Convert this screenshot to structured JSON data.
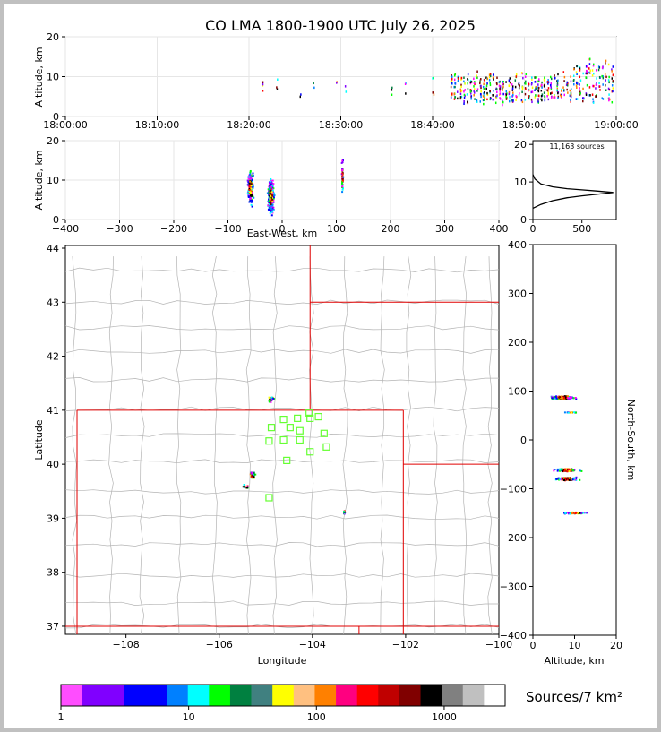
{
  "title": "CO LMA 1800-1900 UTC July 26, 2025",
  "colorbar_label": "Sources/7 km²",
  "source_count": "11,163 sources",
  "chart_data": [
    {
      "type": "scatter",
      "name": "time-height",
      "ylabel": "Altitude, km",
      "ylim": [
        0,
        20
      ],
      "yticks": [
        "0",
        "10",
        "20"
      ],
      "xticks": [
        "18:00:00",
        "18:10:00",
        "18:20:00",
        "18:30:00",
        "18:40:00",
        "18:50:00",
        "19:00:00"
      ],
      "xlim_minutes": [
        0,
        60
      ]
    },
    {
      "type": "scatter",
      "name": "east-west-altitude",
      "xlabel": "East-West, km",
      "ylabel": "Altitude, km",
      "xlim": [
        -400,
        400
      ],
      "ylim": [
        0,
        20
      ],
      "xticks": [
        "−400",
        "−300",
        "−200",
        "−100",
        "0",
        "100",
        "200",
        "300",
        "400"
      ],
      "yticks": [
        "0",
        "10",
        "20"
      ]
    },
    {
      "type": "line",
      "name": "altitude-histogram",
      "xlim": [
        0,
        850
      ],
      "ylim": [
        0,
        21
      ],
      "xticks": [
        "0",
        "500"
      ],
      "yticks": [
        "0",
        "10",
        "20"
      ],
      "profile": [
        [
          0,
          3
        ],
        [
          80,
          4
        ],
        [
          200,
          5
        ],
        [
          350,
          5.8
        ],
        [
          500,
          6.3
        ],
        [
          650,
          6.7
        ],
        [
          820,
          7.2
        ],
        [
          650,
          7.6
        ],
        [
          500,
          7.9
        ],
        [
          350,
          8.2
        ],
        [
          200,
          8.7
        ],
        [
          80,
          9.5
        ],
        [
          20,
          10.8
        ],
        [
          0,
          12
        ]
      ]
    },
    {
      "type": "scatter",
      "name": "plan-view",
      "xlabel": "Longitude",
      "ylabel": "Latitude",
      "xlim": [
        -109.3,
        -100
      ],
      "ylim": [
        36.85,
        44.05
      ],
      "xticks": [
        "−108",
        "−106",
        "−104",
        "−102",
        "−100"
      ],
      "yticks": [
        "37",
        "38",
        "39",
        "40",
        "41",
        "42",
        "43",
        "44"
      ],
      "stations": [
        [
          -104.62,
          40.83
        ],
        [
          -104.32,
          40.85
        ],
        [
          -104.05,
          40.85
        ],
        [
          -103.87,
          40.88
        ],
        [
          -104.07,
          40.95
        ],
        [
          -104.88,
          40.68
        ],
        [
          -104.48,
          40.68
        ],
        [
          -104.27,
          40.62
        ],
        [
          -103.75,
          40.57
        ],
        [
          -104.93,
          40.43
        ],
        [
          -104.62,
          40.45
        ],
        [
          -104.27,
          40.45
        ],
        [
          -103.7,
          40.32
        ],
        [
          -104.05,
          40.23
        ],
        [
          -104.55,
          40.07
        ],
        [
          -104.93,
          39.38
        ]
      ]
    },
    {
      "type": "scatter",
      "name": "north-south-altitude",
      "xlabel": "Altitude, km",
      "ylabel": "North-South, km",
      "xlim": [
        0,
        20
      ],
      "ylim": [
        -400,
        400
      ],
      "xticks": [
        "0",
        "10",
        "20"
      ],
      "yticks": [
        "400",
        "300",
        "200",
        "100",
        "0",
        "−100",
        "−200",
        "−300",
        "−400"
      ]
    }
  ],
  "colorbar": {
    "ticks": [
      "1",
      "10",
      "100",
      "1000"
    ],
    "colors": [
      "#ff4dff",
      "#8000ff",
      "#8000ff",
      "#0000ff",
      "#0000ff",
      "#0080ff",
      "#00ffff",
      "#00ff00",
      "#008040",
      "#408080",
      "#ffff00",
      "#ffc080",
      "#ff8000",
      "#ff0080",
      "#ff0000",
      "#c00000",
      "#800000",
      "#000000",
      "#808080",
      "#c0c0c0",
      "#ffffff"
    ]
  }
}
